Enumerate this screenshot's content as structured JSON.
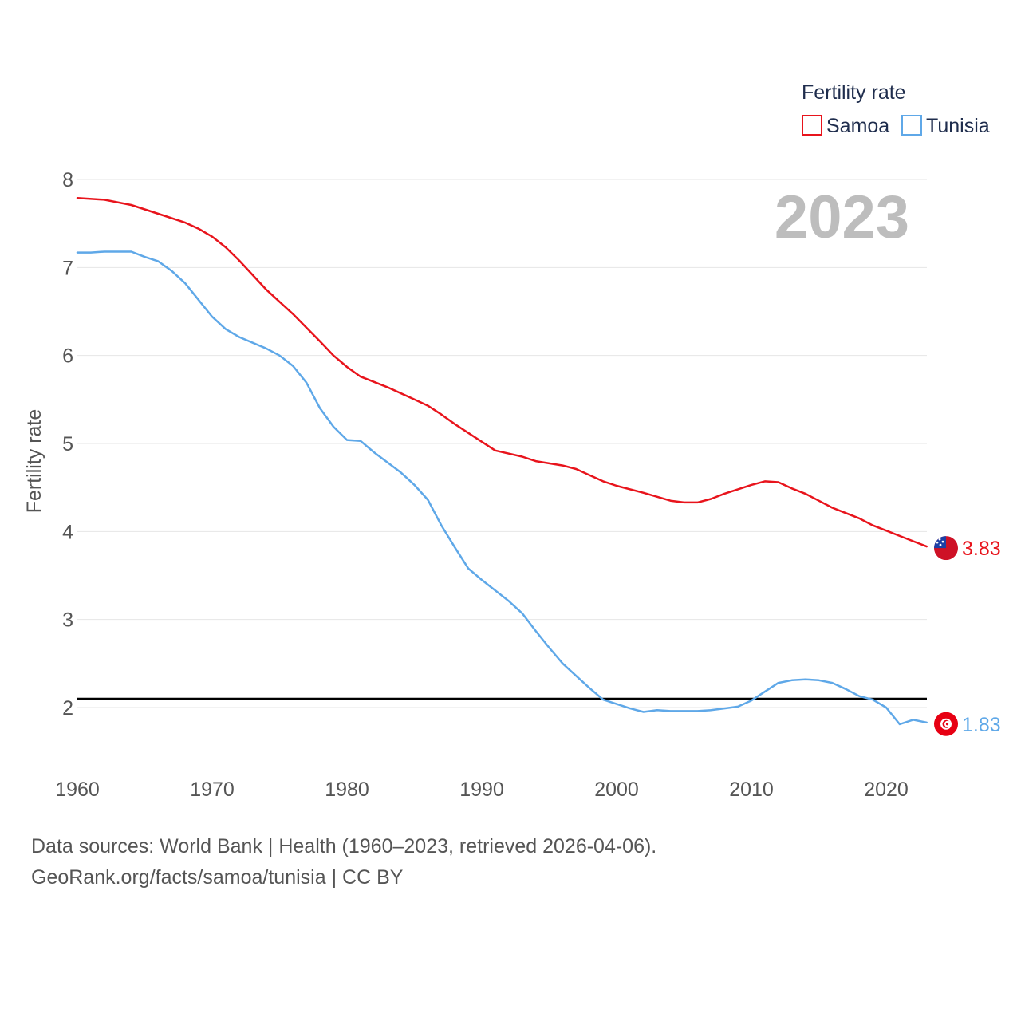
{
  "chart_data": {
    "type": "line",
    "legend_title": "Fertility rate",
    "ylabel": "Fertility rate",
    "xlabel": "",
    "year_label": "2023",
    "xlim": [
      1960,
      2023
    ],
    "ylim": [
      1.3,
      8.2
    ],
    "y_ticks": [
      2,
      3,
      4,
      5,
      6,
      7,
      8
    ],
    "x_ticks": [
      1960,
      1970,
      1980,
      1990,
      2000,
      2010,
      2020
    ],
    "x_tick_labels": [
      "1960",
      "1970",
      "1980",
      "1990",
      "2000",
      "2010",
      "2020"
    ],
    "y_tick_labels": [
      "2",
      "3",
      "4",
      "5",
      "6",
      "7",
      "8"
    ],
    "reference_line": {
      "value": 2.1,
      "color": "#000000"
    },
    "series": [
      {
        "name": "Samoa",
        "color": "#e8141c",
        "end_label": "3.83",
        "flag_icon": "samoa-flag-icon",
        "x": [
          1960,
          1962,
          1964,
          1966,
          1968,
          1969,
          1970,
          1971,
          1972,
          1974,
          1976,
          1978,
          1979,
          1980,
          1981,
          1983,
          1985,
          1986,
          1987,
          1988,
          1990,
          1991,
          1993,
          1994,
          1996,
          1997,
          1998,
          1999,
          2000,
          2002,
          2004,
          2005,
          2006,
          2007,
          2008,
          2009,
          2010,
          2011,
          2012,
          2013,
          2014,
          2015,
          2016,
          2017,
          2018,
          2019,
          2020,
          2021,
          2022,
          2023
        ],
        "values": [
          7.79,
          7.77,
          7.71,
          7.61,
          7.51,
          7.44,
          7.35,
          7.23,
          7.08,
          6.75,
          6.47,
          6.16,
          6.0,
          5.87,
          5.76,
          5.64,
          5.5,
          5.43,
          5.33,
          5.22,
          5.02,
          4.92,
          4.85,
          4.8,
          4.75,
          4.71,
          4.64,
          4.57,
          4.52,
          4.44,
          4.35,
          4.33,
          4.33,
          4.37,
          4.43,
          4.48,
          4.53,
          4.57,
          4.56,
          4.49,
          4.43,
          4.35,
          4.27,
          4.21,
          4.15,
          4.07,
          4.01,
          3.95,
          3.89,
          3.83
        ]
      },
      {
        "name": "Tunisia",
        "color": "#5fa8e8",
        "end_label": "1.83",
        "flag_icon": "tunisia-flag-icon",
        "x": [
          1960,
          1961,
          1962,
          1964,
          1965,
          1966,
          1967,
          1968,
          1969,
          1970,
          1971,
          1972,
          1974,
          1975,
          1976,
          1977,
          1978,
          1979,
          1980,
          1981,
          1982,
          1984,
          1985,
          1986,
          1987,
          1988,
          1989,
          1990,
          1992,
          1993,
          1994,
          1995,
          1996,
          1997,
          1998,
          1999,
          2000,
          2001,
          2002,
          2003,
          2004,
          2005,
          2006,
          2007,
          2008,
          2009,
          2010,
          2011,
          2012,
          2013,
          2014,
          2015,
          2016,
          2017,
          2018,
          2019,
          2020,
          2021,
          2022,
          2023
        ],
        "values": [
          7.17,
          7.17,
          7.18,
          7.18,
          7.12,
          7.07,
          6.96,
          6.82,
          6.63,
          6.44,
          6.3,
          6.21,
          6.08,
          6.0,
          5.88,
          5.69,
          5.4,
          5.19,
          5.04,
          5.03,
          4.9,
          4.67,
          4.53,
          4.36,
          4.07,
          3.82,
          3.58,
          3.45,
          3.21,
          3.07,
          2.87,
          2.68,
          2.5,
          2.36,
          2.22,
          2.09,
          2.04,
          1.99,
          1.95,
          1.97,
          1.96,
          1.96,
          1.96,
          1.97,
          1.99,
          2.01,
          2.08,
          2.18,
          2.28,
          2.31,
          2.32,
          2.31,
          2.28,
          2.21,
          2.13,
          2.09,
          2.0,
          1.81,
          1.86,
          1.83
        ]
      }
    ]
  },
  "source": {
    "line1": "Data sources: World Bank | Health (1960–2023, retrieved 2026-04-06).",
    "line2": "GeoRank.org/facts/samoa/tunisia | CC BY"
  }
}
